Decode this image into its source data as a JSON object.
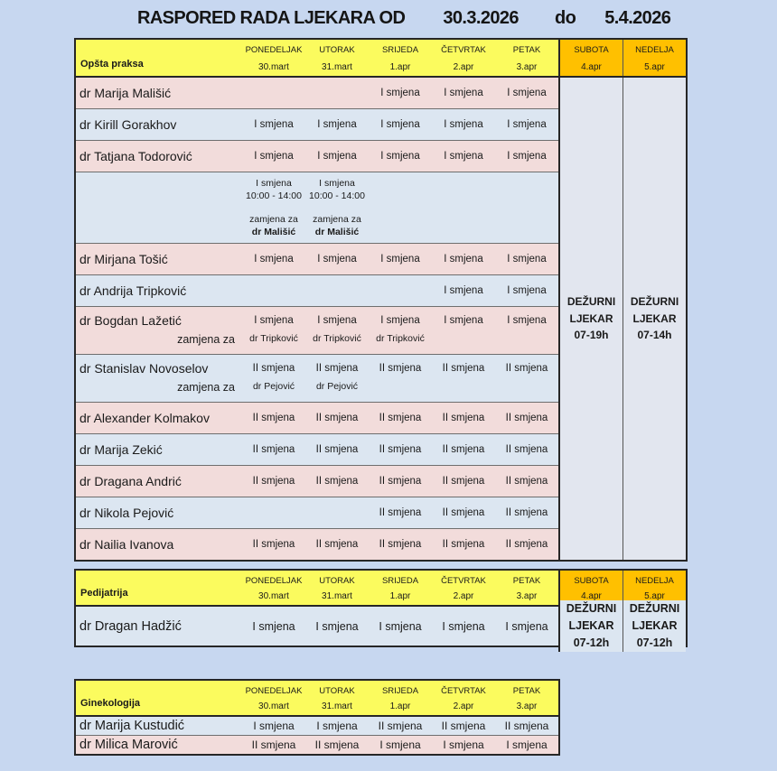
{
  "title": {
    "text": "RASPORED RADA LJEKARA OD",
    "date_from": "30.3.2026",
    "separator": "do",
    "date_to": "5.4.2026"
  },
  "colors": {
    "page_background": "#c7d7f0",
    "header_yellow": "#fbfb5e",
    "weekend_orange": "#ffc000",
    "row_pink": "#f2dcdb",
    "row_blue": "#dce6f1",
    "weekend_body": "#e2e6ef"
  },
  "tables": [
    {
      "section": "Opšta praksa",
      "days": [
        {
          "name": "PONEDELJAK",
          "date": "30.mart"
        },
        {
          "name": "UTORAK",
          "date": "31.mart"
        },
        {
          "name": "SRIJEDA",
          "date": "1.apr"
        },
        {
          "name": "ČETVRTAK",
          "date": "2.apr"
        },
        {
          "name": "PETAK",
          "date": "3.apr"
        }
      ],
      "weekend": [
        {
          "name": "SUBOTA",
          "date": "4.apr"
        },
        {
          "name": "NEDELJA",
          "date": "5.apr"
        }
      ],
      "weekend_merged": [
        {
          "lines": [
            "DEŽURNI",
            "LJEKAR",
            "07-19h"
          ]
        },
        {
          "lines": [
            "DEŽURNI",
            "LJEKAR",
            "07-14h"
          ]
        }
      ],
      "rows": [
        {
          "type": "simple",
          "bg": "pink",
          "name": "dr Marija Mališić",
          "cells": [
            "",
            "",
            "I smjena",
            "I smjena",
            "I smjena"
          ]
        },
        {
          "type": "simple",
          "bg": "blue",
          "name": "dr Kirill Gorakhov",
          "cells": [
            "I smjena",
            "I smjena",
            "I smjena",
            "I smjena",
            "I smjena"
          ]
        },
        {
          "type": "simple",
          "bg": "pink",
          "name": "dr Tatjana Todorović",
          "cells": [
            "I smjena",
            "I smjena",
            "I smjena",
            "I smjena",
            "I smjena"
          ]
        },
        {
          "type": "replacement",
          "bg": "blue",
          "name": "",
          "repl_cells": [
            {
              "shift": "I smjena",
              "time": "10:00 - 14:00",
              "note": "zamjena za",
              "doctor": "dr Mališić"
            },
            {
              "shift": "I smjena",
              "time": "10:00 - 14:00",
              "note": "zamjena za",
              "doctor": "dr Mališić"
            },
            null,
            null,
            null
          ]
        },
        {
          "type": "simple",
          "bg": "pink",
          "name": "dr Mirjana Tošić",
          "cells": [
            "I smjena",
            "I smjena",
            "I smjena",
            "I smjena",
            "I smjena"
          ]
        },
        {
          "type": "simple",
          "bg": "blue",
          "name": "dr Andrija Tripković",
          "cells": [
            "",
            "",
            "",
            "I smjena",
            "I smjena"
          ]
        },
        {
          "type": "sub",
          "bg": "pink",
          "name": "dr Bogdan Lažetić",
          "cells": [
            "I smjena",
            "I smjena",
            "I smjena",
            "I smjena",
            "I smjena"
          ],
          "sub_label": "zamjena za",
          "sub_cells": [
            "dr Tripković",
            "dr Tripković",
            "dr Tripković",
            "",
            ""
          ]
        },
        {
          "type": "sub",
          "bg": "blue",
          "name": "dr Stanislav Novoselov",
          "cells": [
            "II smjena",
            "II smjena",
            "II smjena",
            "II smjena",
            "II smjena"
          ],
          "sub_label": "zamjena za",
          "sub_cells": [
            "dr Pejović",
            "dr Pejović",
            "",
            "",
            ""
          ]
        },
        {
          "type": "simple",
          "bg": "pink",
          "name": "dr Alexander Kolmakov",
          "cells": [
            "II smjena",
            "II smjena",
            "II smjena",
            "II smjena",
            "II smjena"
          ]
        },
        {
          "type": "simple",
          "bg": "blue",
          "name": "dr Marija Zekić",
          "cells": [
            "II smjena",
            "II smjena",
            "II smjena",
            "II smjena",
            "II smjena"
          ]
        },
        {
          "type": "simple",
          "bg": "pink",
          "name": "dr Dragana Andrić",
          "cells": [
            "II smjena",
            "II smjena",
            "II smjena",
            "II smjena",
            "II smjena"
          ]
        },
        {
          "type": "simple",
          "bg": "blue",
          "name": "dr Nikola Pejović",
          "cells": [
            "",
            "",
            "II smjena",
            "II smjena",
            "II smjena"
          ]
        },
        {
          "type": "simple",
          "bg": "pink",
          "name": "dr Nailia Ivanova",
          "cells": [
            "II smjena",
            "II smjena",
            "II smjena",
            "II smjena",
            "II smjena"
          ]
        }
      ]
    },
    {
      "section": "Pedijatrija",
      "days": [
        {
          "name": "PONEDELJAK",
          "date": "30.mart"
        },
        {
          "name": "UTORAK",
          "date": "31.mart"
        },
        {
          "name": "SRIJEDA",
          "date": "1.apr"
        },
        {
          "name": "ČETVRTAK",
          "date": "2.apr"
        },
        {
          "name": "PETAK",
          "date": "3.apr"
        }
      ],
      "weekend": [
        {
          "name": "SUBOTA",
          "date": "4.apr"
        },
        {
          "name": "NEDELJA",
          "date": "5.apr"
        }
      ],
      "rows": [
        {
          "type": "weekend_row",
          "bg": "blue",
          "name": "dr Dragan Hadžić",
          "cells": [
            "I smjena",
            "I smjena",
            "I smjena",
            "I smjena",
            "I smjena"
          ],
          "weekend_cells": [
            {
              "lines": [
                "DEŽURNI",
                "LJEKAR",
                "07-12h"
              ]
            },
            {
              "lines": [
                "DEŽURNI",
                "LJEKAR",
                "07-12h"
              ]
            }
          ]
        }
      ]
    },
    {
      "section": "Ginekologija",
      "days": [
        {
          "name": "PONEDELJAK",
          "date": "30.mart"
        },
        {
          "name": "UTORAK",
          "date": "31.mart"
        },
        {
          "name": "SRIJEDA",
          "date": "1.apr"
        },
        {
          "name": "ČETVRTAK",
          "date": "2.apr"
        },
        {
          "name": "PETAK",
          "date": "3.apr"
        }
      ],
      "rows": [
        {
          "type": "simple",
          "bg": "blue",
          "name": "dr Marija Kustudić",
          "cells": [
            "I smjena",
            "I smjena",
            "II smjena",
            "II smjena",
            "II smjena"
          ]
        },
        {
          "type": "simple",
          "bg": "pink",
          "name": "dr Milica Marović",
          "cells": [
            "II smjena",
            "II smjena",
            "I smjena",
            "I smjena",
            "I smjena"
          ]
        }
      ]
    }
  ]
}
